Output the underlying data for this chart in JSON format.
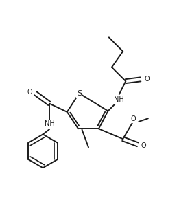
{
  "bg_color": "#ffffff",
  "line_color": "#1a1a1a",
  "line_width": 1.4,
  "figsize": [
    2.77,
    3.04
  ],
  "dpi": 100,
  "xlim": [
    0,
    10
  ],
  "ylim": [
    0,
    11
  ],
  "fs": 7.0
}
